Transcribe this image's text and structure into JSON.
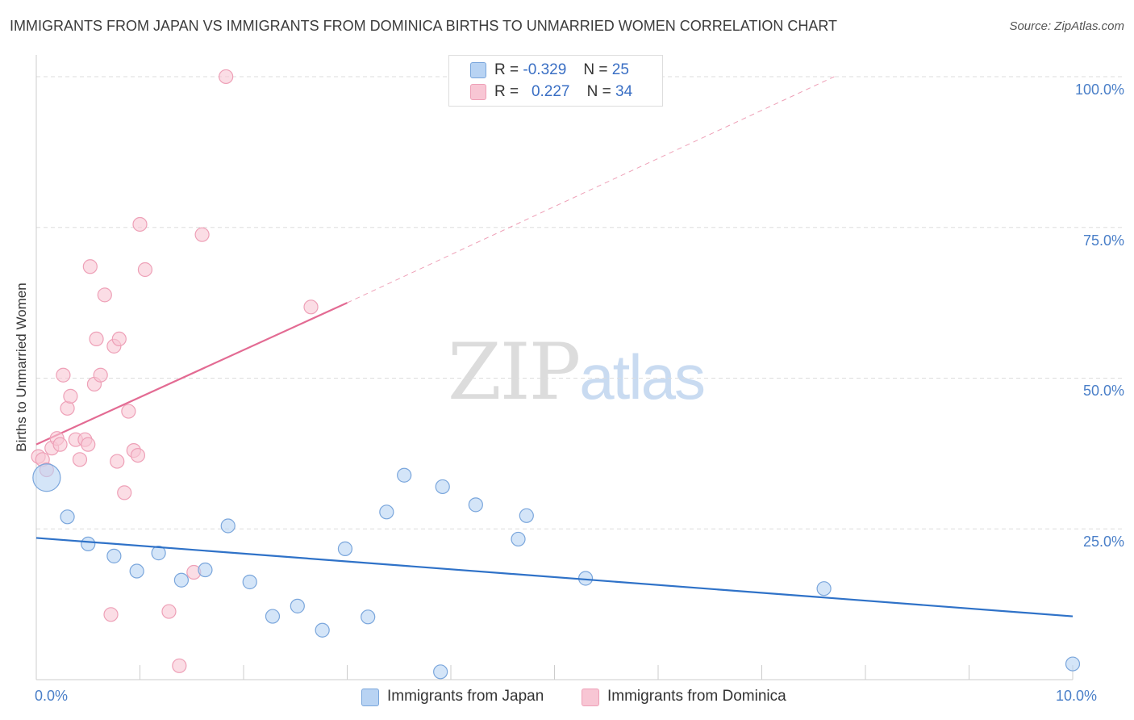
{
  "header": {
    "title": "IMMIGRANTS FROM JAPAN VS IMMIGRANTS FROM DOMINICA BIRTHS TO UNMARRIED WOMEN CORRELATION CHART",
    "source": "Source: ZipAtlas.com"
  },
  "watermark": {
    "zip": "ZIP",
    "atlas": "atlas"
  },
  "legend": {
    "japan": {
      "r_label": "R =",
      "r_value": "-0.329",
      "n_label": "N =",
      "n_value": "25",
      "name": "Immigrants from Japan"
    },
    "dominica": {
      "r_label": "R =",
      "r_value": "0.227",
      "n_label": "N =",
      "n_value": "34",
      "name": "Immigrants from Dominica"
    }
  },
  "colors": {
    "japan_fill": "#b8d3f3",
    "japan_stroke": "#7aa6dc",
    "japan_line": "#2f72c8",
    "dominica_fill": "#f8c6d4",
    "dominica_stroke": "#eea0b7",
    "dominica_line": "#e36b93",
    "grid": "#dddddd",
    "axis_text": "#4a7fc8"
  },
  "chart_data": {
    "type": "scatter",
    "title": "IMMIGRANTS FROM JAPAN VS IMMIGRANTS FROM DOMINICA BIRTHS TO UNMARRIED WOMEN CORRELATION CHART",
    "xlabel": "",
    "ylabel": "Births to Unmarried Women",
    "xlim": [
      0,
      10
    ],
    "ylim": [
      0,
      102
    ],
    "x_tick_labels": [
      {
        "value": 0,
        "label": "0.0%"
      },
      {
        "value": 10,
        "label": "10.0%"
      }
    ],
    "y_tick_labels": [
      {
        "value": 25,
        "label": "25.0%"
      },
      {
        "value": 50,
        "label": "50.0%"
      },
      {
        "value": 75,
        "label": "75.0%"
      },
      {
        "value": 100,
        "label": "100.0%"
      }
    ],
    "grid": true,
    "series": [
      {
        "name": "Immigrants from Japan",
        "color_key": "japan",
        "r": -0.329,
        "n": 25,
        "points": [
          {
            "x": 0.1,
            "y": 33.5,
            "size": "large"
          },
          {
            "x": 0.3,
            "y": 27.0
          },
          {
            "x": 0.5,
            "y": 22.5
          },
          {
            "x": 0.75,
            "y": 20.5
          },
          {
            "x": 0.97,
            "y": 18.0
          },
          {
            "x": 1.18,
            "y": 21.0
          },
          {
            "x": 1.4,
            "y": 16.5
          },
          {
            "x": 1.63,
            "y": 18.2
          },
          {
            "x": 1.85,
            "y": 25.5
          },
          {
            "x": 2.06,
            "y": 16.2
          },
          {
            "x": 2.28,
            "y": 10.5
          },
          {
            "x": 2.52,
            "y": 12.2
          },
          {
            "x": 2.76,
            "y": 8.2
          },
          {
            "x": 2.98,
            "y": 21.7
          },
          {
            "x": 3.2,
            "y": 10.4
          },
          {
            "x": 3.38,
            "y": 27.8
          },
          {
            "x": 3.55,
            "y": 33.9
          },
          {
            "x": 3.9,
            "y": 1.3
          },
          {
            "x": 3.92,
            "y": 32.0
          },
          {
            "x": 4.24,
            "y": 29.0
          },
          {
            "x": 4.65,
            "y": 23.3
          },
          {
            "x": 4.73,
            "y": 27.2
          },
          {
            "x": 5.3,
            "y": 16.8
          },
          {
            "x": 7.6,
            "y": 15.1
          },
          {
            "x": 10.0,
            "y": 2.6
          }
        ],
        "trendline": {
          "x0": 0.0,
          "y0": 23.5,
          "x1": 10.0,
          "y1": 10.5
        }
      },
      {
        "name": "Immigrants from Dominica",
        "color_key": "dominica",
        "r": 0.227,
        "n": 34,
        "points": [
          {
            "x": 0.02,
            "y": 37.0
          },
          {
            "x": 0.06,
            "y": 36.5
          },
          {
            "x": 0.1,
            "y": 34.8
          },
          {
            "x": 0.15,
            "y": 38.4
          },
          {
            "x": 0.2,
            "y": 40.0
          },
          {
            "x": 0.23,
            "y": 39.0
          },
          {
            "x": 0.26,
            "y": 50.5
          },
          {
            "x": 0.3,
            "y": 45.0
          },
          {
            "x": 0.33,
            "y": 47.0
          },
          {
            "x": 0.38,
            "y": 39.8
          },
          {
            "x": 0.42,
            "y": 36.5
          },
          {
            "x": 0.47,
            "y": 39.8
          },
          {
            "x": 0.5,
            "y": 39.0
          },
          {
            "x": 0.52,
            "y": 68.5
          },
          {
            "x": 0.56,
            "y": 49.0
          },
          {
            "x": 0.58,
            "y": 56.5
          },
          {
            "x": 0.62,
            "y": 50.5
          },
          {
            "x": 0.66,
            "y": 63.8
          },
          {
            "x": 0.72,
            "y": 10.8
          },
          {
            "x": 0.75,
            "y": 55.3
          },
          {
            "x": 0.78,
            "y": 36.2
          },
          {
            "x": 0.8,
            "y": 56.5
          },
          {
            "x": 0.85,
            "y": 31.0
          },
          {
            "x": 0.89,
            "y": 44.5
          },
          {
            "x": 0.94,
            "y": 38.0
          },
          {
            "x": 0.98,
            "y": 37.2
          },
          {
            "x": 1.0,
            "y": 75.5
          },
          {
            "x": 1.05,
            "y": 68.0
          },
          {
            "x": 1.28,
            "y": 11.3
          },
          {
            "x": 1.38,
            "y": 2.3
          },
          {
            "x": 1.52,
            "y": 17.8
          },
          {
            "x": 1.6,
            "y": 73.8
          },
          {
            "x": 1.83,
            "y": 100.0
          },
          {
            "x": 2.65,
            "y": 61.8
          }
        ],
        "trendline": {
          "x0": 0.0,
          "y0": 39.0,
          "x1": 3.0,
          "y1": 62.5,
          "extended_x1": 7.7,
          "extended_y1": 100.0
        }
      }
    ]
  }
}
